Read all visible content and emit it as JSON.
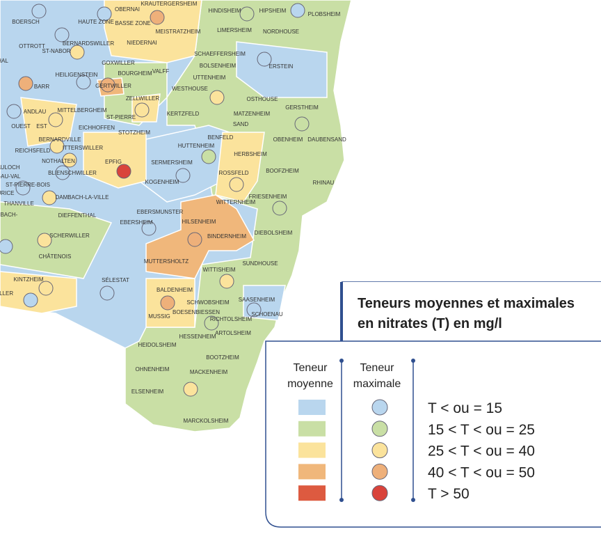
{
  "map": {
    "places": [
      "BOERSCH",
      "HAUTE ZONE",
      "OBERNAI",
      "KRAUTERGERSHEIM",
      "BASSE ZONE",
      "MEISTRATZHEIM",
      "HINDISHEIM",
      "HIPSHEIM",
      "PLOBSHEIM",
      "LIMERSHEIM",
      "NORDHOUSE",
      "OTTROTT",
      "ST-NABOR",
      "BERNARDSWILLER",
      "NIEDERNAI",
      "SCHAEFFERSHEIM",
      "ERSTEIN",
      "BOLSENHEIM",
      "GOXWILLER",
      "BOURGHEIM",
      "VALFF",
      "HEILIGENSTEIN",
      "UTTENHEIM",
      "BARR",
      "GERTWILLER",
      "WESTHOUSE",
      "ZELLWILLER",
      "OSTHOUSE",
      "GERSTHEIM",
      "ANDLAU",
      "MITTELBERGHEIM",
      "ST-PIERRE",
      "KERTZFELD",
      "MATZENHEIM",
      "SAND",
      "OUEST",
      "EST",
      "EICHHOFFEN",
      "STOTZHEIM",
      "BENFELD",
      "OBENHEIM",
      "DAUBENSAND",
      "BERNARDVILLE",
      "ITTERSWILLER",
      "HUTTENHEIM",
      "HERBSHEIM",
      "REICHSFELD",
      "NOTHALTEN",
      "EPFIG",
      "SERMERSHEIM",
      "BLIENSCHWILLER",
      "ROSSFELD",
      "BOOFZHEIM",
      "RHINAU",
      "KOGENHEIM",
      "ST-PIERRE-BOIS",
      "DAMBACH-LA-VILLE",
      "FRIESENHEIM",
      "THANVILLE",
      "WITTERNHEIM",
      "EBERSMUNSTER",
      "DIEFFENTHAL",
      "EBERSHEIM",
      "HILSENHEIM",
      "DIEBOLSHEIM",
      "SCHERWILLER",
      "BINDERNHEIM",
      "CHÂTENOIS",
      "MUTTERSHOLTZ",
      "SUNDHOUSE",
      "WITTISHEIM",
      "KINTZHEIM",
      "SÉLESTAT",
      "BALDENHEIM",
      "SAASENHEIM",
      "SCHWOBSHEIM",
      "SCHOENAU",
      "BOESENBIESSEN",
      "MUSSIG",
      "RICHTOLSHEIM",
      "HESSENHEIM",
      "ARTOLSHEIM",
      "HEIDOLSHEIM",
      "BOOTZHEIM",
      "OHNENHEIM",
      "MACKENHEIM",
      "ELSENHEIM",
      "MARCKOLSHEIM",
      "HAL",
      "AULOCH",
      "-AU-VAL",
      "URICE",
      "NBACH-",
      "ILLER"
    ]
  },
  "legend": {
    "title": [
      "Teneurs moyennes et maximales",
      "en nitrates (T) en mg/l"
    ],
    "average_header": [
      "Teneur",
      "moyenne"
    ],
    "maximum_header": [
      "Teneur",
      "maximale"
    ],
    "classes": [
      {
        "label": "T < ou = 15",
        "area_color": "#b9d6ee",
        "circle_color": "#b9d6ee"
      },
      {
        "label": "15 < T < ou = 25",
        "area_color": "#c9dfa5",
        "circle_color": "#c9dfa5"
      },
      {
        "label": "25 < T < ou = 40",
        "area_color": "#fbe39c",
        "circle_color": "#fbe39c"
      },
      {
        "label": "40 < T < ou = 50",
        "area_color": "#f0b77b",
        "circle_color": "#eeb07a"
      },
      {
        "label": "T > 50",
        "area_color": "#dd5a40",
        "circle_color": "#d9433b"
      }
    ]
  }
}
